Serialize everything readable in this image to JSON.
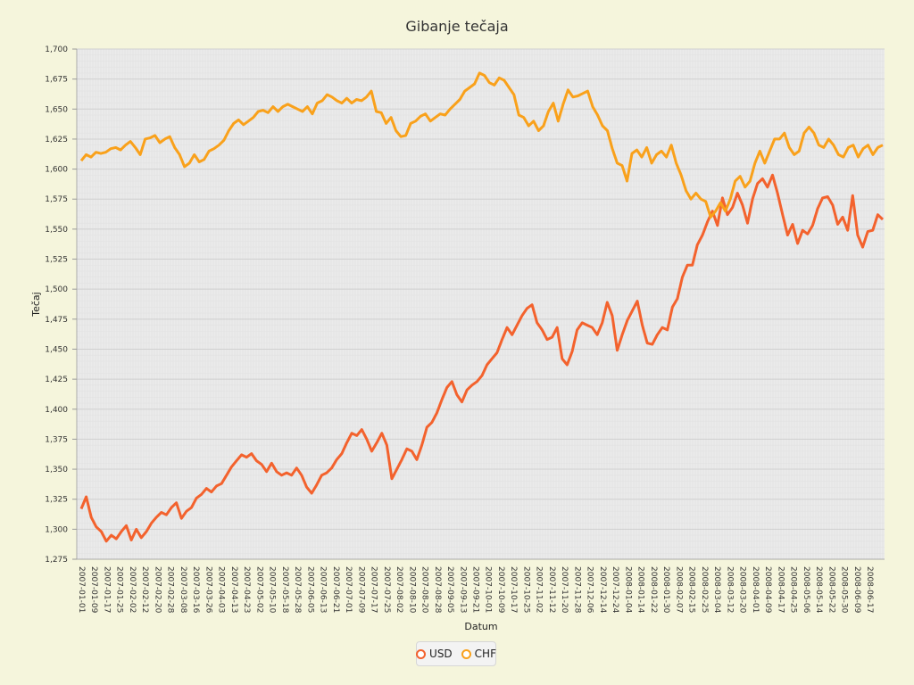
{
  "chart_data": {
    "type": "line",
    "title": "Gibanje tečaja",
    "xlabel": "Datum",
    "ylabel": "Tečaj",
    "ylim": [
      1.275,
      1.7
    ],
    "y_ticks": [
      "1,275",
      "1,300",
      "1,325",
      "1,350",
      "1,375",
      "1,400",
      "1,425",
      "1,450",
      "1,475",
      "1,500",
      "1,525",
      "1,550",
      "1,575",
      "1,600",
      "1,625",
      "1,650",
      "1,675",
      "1,700"
    ],
    "x_ticks": [
      "2007-01-01",
      "2007-01-09",
      "2007-01-17",
      "2007-01-25",
      "2007-02-02",
      "2007-02-12",
      "2007-02-20",
      "2007-02-28",
      "2007-03-08",
      "2007-03-16",
      "2007-03-26",
      "2007-04-03",
      "2007-04-13",
      "2007-04-23",
      "2007-05-02",
      "2007-05-10",
      "2007-05-18",
      "2007-05-28",
      "2007-06-05",
      "2007-06-13",
      "2007-06-21",
      "2007-07-01",
      "2007-07-09",
      "2007-07-17",
      "2007-07-25",
      "2007-08-02",
      "2007-08-10",
      "2007-08-20",
      "2007-08-28",
      "2007-09-05",
      "2007-09-13",
      "2007-09-21",
      "2007-10-01",
      "2007-10-09",
      "2007-10-17",
      "2007-10-25",
      "2007-11-02",
      "2007-11-12",
      "2007-11-20",
      "2007-11-28",
      "2007-12-06",
      "2007-12-14",
      "2007-12-24",
      "2008-01-04",
      "2008-01-14",
      "2008-01-22",
      "2008-01-30",
      "2008-02-07",
      "2008-02-15",
      "2008-02-25",
      "2008-03-04",
      "2008-03-12",
      "2008-03-20",
      "2008-04-01",
      "2008-04-09",
      "2008-04-17",
      "2008-04-25",
      "2008-05-06",
      "2008-05-14",
      "2008-05-22",
      "2008-05-30",
      "2008-06-09",
      "2008-06-17"
    ],
    "grid": true,
    "legend_position": "bottom",
    "series": [
      {
        "name": "USD",
        "color": "#f3622d",
        "values": [
          1.317,
          1.327,
          1.31,
          1.302,
          1.298,
          1.29,
          1.295,
          1.292,
          1.298,
          1.303,
          1.291,
          1.3,
          1.293,
          1.298,
          1.305,
          1.31,
          1.314,
          1.312,
          1.318,
          1.322,
          1.309,
          1.315,
          1.318,
          1.326,
          1.329,
          1.334,
          1.331,
          1.336,
          1.338,
          1.345,
          1.352,
          1.357,
          1.362,
          1.36,
          1.363,
          1.357,
          1.354,
          1.348,
          1.355,
          1.348,
          1.345,
          1.347,
          1.345,
          1.351,
          1.345,
          1.335,
          1.33,
          1.337,
          1.345,
          1.347,
          1.351,
          1.358,
          1.363,
          1.372,
          1.38,
          1.378,
          1.383,
          1.375,
          1.365,
          1.372,
          1.38,
          1.37,
          1.342,
          1.35,
          1.358,
          1.367,
          1.365,
          1.358,
          1.37,
          1.385,
          1.389,
          1.397,
          1.408,
          1.418,
          1.423,
          1.412,
          1.406,
          1.416,
          1.42,
          1.423,
          1.428,
          1.437,
          1.442,
          1.447,
          1.458,
          1.468,
          1.462,
          1.47,
          1.478,
          1.484,
          1.487,
          1.472,
          1.466,
          1.458,
          1.46,
          1.468,
          1.442,
          1.437,
          1.448,
          1.466,
          1.472,
          1.47,
          1.468,
          1.462,
          1.472,
          1.489,
          1.478,
          1.449,
          1.462,
          1.474,
          1.482,
          1.49,
          1.47,
          1.455,
          1.454,
          1.462,
          1.468,
          1.466,
          1.485,
          1.492,
          1.51,
          1.52,
          1.52,
          1.537,
          1.545,
          1.556,
          1.565,
          1.553,
          1.576,
          1.562,
          1.568,
          1.58,
          1.57,
          1.555,
          1.575,
          1.588,
          1.592,
          1.585,
          1.595,
          1.58,
          1.562,
          1.545,
          1.554,
          1.538,
          1.549,
          1.546,
          1.553,
          1.567,
          1.576,
          1.577,
          1.57,
          1.554,
          1.56,
          1.549,
          1.578,
          1.545,
          1.535,
          1.548,
          1.549,
          1.562,
          1.558
        ]
      },
      {
        "name": "CHF",
        "color": "#f9a11b",
        "values": [
          1.607,
          1.612,
          1.61,
          1.614,
          1.613,
          1.614,
          1.617,
          1.618,
          1.616,
          1.62,
          1.623,
          1.618,
          1.612,
          1.625,
          1.626,
          1.628,
          1.622,
          1.625,
          1.627,
          1.618,
          1.612,
          1.602,
          1.605,
          1.612,
          1.606,
          1.608,
          1.615,
          1.617,
          1.62,
          1.624,
          1.632,
          1.638,
          1.641,
          1.637,
          1.64,
          1.643,
          1.648,
          1.649,
          1.647,
          1.652,
          1.648,
          1.652,
          1.654,
          1.652,
          1.65,
          1.648,
          1.652,
          1.646,
          1.655,
          1.657,
          1.662,
          1.66,
          1.657,
          1.655,
          1.659,
          1.655,
          1.658,
          1.657,
          1.66,
          1.665,
          1.648,
          1.647,
          1.638,
          1.643,
          1.632,
          1.627,
          1.628,
          1.638,
          1.64,
          1.644,
          1.646,
          1.64,
          1.643,
          1.646,
          1.645,
          1.65,
          1.654,
          1.658,
          1.665,
          1.668,
          1.671,
          1.68,
          1.678,
          1.672,
          1.67,
          1.676,
          1.674,
          1.668,
          1.662,
          1.645,
          1.643,
          1.636,
          1.64,
          1.632,
          1.636,
          1.648,
          1.655,
          1.64,
          1.654,
          1.666,
          1.66,
          1.661,
          1.663,
          1.665,
          1.652,
          1.645,
          1.636,
          1.632,
          1.617,
          1.605,
          1.603,
          1.59,
          1.613,
          1.616,
          1.61,
          1.618,
          1.605,
          1.612,
          1.615,
          1.61,
          1.62,
          1.605,
          1.595,
          1.582,
          1.575,
          1.58,
          1.575,
          1.573,
          1.56,
          1.565,
          1.572,
          1.565,
          1.575,
          1.59,
          1.594,
          1.585,
          1.59,
          1.605,
          1.615,
          1.605,
          1.615,
          1.625,
          1.625,
          1.63,
          1.618,
          1.612,
          1.615,
          1.63,
          1.635,
          1.63,
          1.62,
          1.618,
          1.625,
          1.62,
          1.612,
          1.61,
          1.618,
          1.62,
          1.61,
          1.617,
          1.62,
          1.612,
          1.618,
          1.62
        ]
      }
    ]
  }
}
